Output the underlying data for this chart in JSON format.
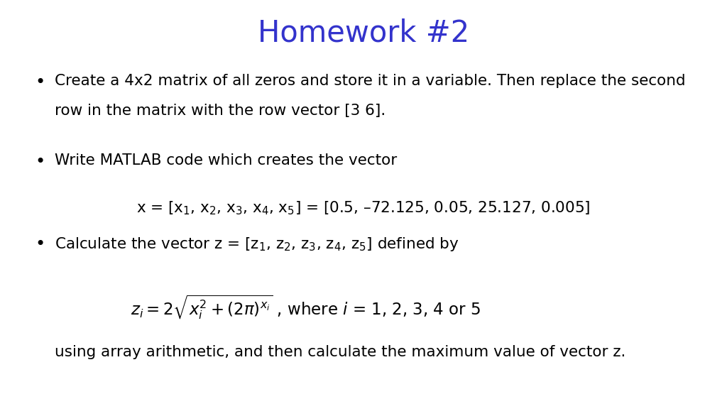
{
  "title": "Homework #2",
  "title_color": "#3333CC",
  "title_fontsize": 30,
  "background_color": "#FFFFFF",
  "bullet1_line1": "Create a 4x2 matrix of all zeros and store it in a variable. Then replace the second",
  "bullet1_line2": "row in the matrix with the row vector [3 6].",
  "bullet2_line1": "Write MATLAB code which creates the vector",
  "bullet3_line1": "Calculate the vector z = [z$_1$, z$_2$, z$_3$, z$_4$, z$_5$] defined by",
  "bullet4_line1": "using array arithmetic, and then calculate the maximum value of vector z.",
  "text_color": "#000000",
  "text_fontsize": 15.5,
  "fig_width": 10.24,
  "fig_height": 5.62,
  "dpi": 100
}
